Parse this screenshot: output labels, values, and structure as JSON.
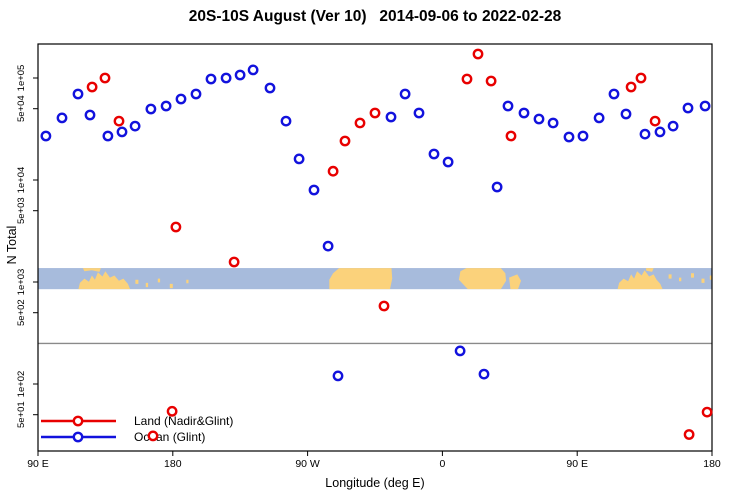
{
  "figure": {
    "title": "20S-10S August (Ver 10)   2014-09-06 to 2022-02-28",
    "xlabel": "Longitude (deg E)",
    "ylabel": "N Total"
  },
  "legend": {
    "items": [
      {
        "label": "Land (Nadir&Glint)",
        "color": "#e80000"
      },
      {
        "label": "Ocean (Glint)",
        "color": "#1212dd"
      }
    ]
  },
  "chart_data": {
    "type": "scatter",
    "title": "20S-10S August (Ver 10)   2014-09-06 to 2022-02-28",
    "xlabel": "Longitude (deg E)",
    "ylabel": "N Total",
    "x_axis": {
      "units": "degrees east (wrapping past 360)",
      "range": [
        90,
        540
      ],
      "ticks": [
        {
          "pos": 90,
          "label": "90 E"
        },
        {
          "pos": 180,
          "label": "180"
        },
        {
          "pos": 270,
          "label": "90 W"
        },
        {
          "pos": 360,
          "label": "0"
        },
        {
          "pos": 450,
          "label": "90 E"
        },
        {
          "pos": 540,
          "label": "180"
        }
      ]
    },
    "y_axis": {
      "scale": "log",
      "range": [
        22,
        215000
      ],
      "ticks": [
        {
          "value": 50,
          "label": "5e+01"
        },
        {
          "value": 100,
          "label": "1e+02"
        },
        {
          "value": 500,
          "label": "5e+02"
        },
        {
          "value": 1000,
          "label": "1e+03"
        },
        {
          "value": 5000,
          "label": "5e+03"
        },
        {
          "value": 10000,
          "label": "1e+04"
        },
        {
          "value": 50000,
          "label": "5e+04"
        },
        {
          "value": 100000,
          "label": "1e+05"
        }
      ]
    },
    "reference_line": {
      "value": 250,
      "color": "#8a8a8a"
    },
    "map_band": {
      "description": "land/ocean strip map of the 20S-10S latitude band",
      "value_top": 1370,
      "value_bottom": 850,
      "ocean_color": "#a7bbdc",
      "land_color": "#fbd27b",
      "land": [
        {
          "name": "australia-west",
          "points": [
            [
              117,
              1
            ],
            [
              118,
              0.7
            ],
            [
              121,
              0.5
            ],
            [
              124,
              0.65
            ],
            [
              126,
              0.35
            ],
            [
              128,
              0.55
            ],
            [
              130,
              0.2
            ],
            [
              133,
              0.4
            ],
            [
              135,
              0.15
            ],
            [
              138,
              0.45
            ],
            [
              141,
              0.35
            ],
            [
              144,
              0.6
            ],
            [
              147,
              0.5
            ],
            [
              150,
              0.75
            ],
            [
              151.5,
              1
            ]
          ]
        },
        {
          "name": "new-guinea-west",
          "points": [
            [
              120,
              0
            ],
            [
              132,
              0
            ],
            [
              131,
              0.18
            ],
            [
              126,
              0.1
            ],
            [
              121,
              0.15
            ]
          ]
        },
        {
          "name": "island-speck",
          "points": [
            [
              155,
              0.55
            ],
            [
              157,
              0.55
            ],
            [
              157,
              0.75
            ],
            [
              155,
              0.75
            ]
          ]
        },
        {
          "name": "island-speck",
          "points": [
            [
              162,
              0.7
            ],
            [
              163.5,
              0.7
            ],
            [
              163.5,
              0.9
            ],
            [
              162,
              0.9
            ]
          ]
        },
        {
          "name": "island-speck",
          "points": [
            [
              170,
              0.5
            ],
            [
              171.5,
              0.5
            ],
            [
              171.5,
              0.68
            ],
            [
              170,
              0.68
            ]
          ]
        },
        {
          "name": "island-speck",
          "points": [
            [
              178,
              0.75
            ],
            [
              180,
              0.75
            ],
            [
              180,
              0.95
            ],
            [
              178,
              0.95
            ]
          ]
        },
        {
          "name": "island-speck",
          "points": [
            [
              189,
              0.55
            ],
            [
              190.5,
              0.55
            ],
            [
              190.5,
              0.72
            ],
            [
              189,
              0.72
            ]
          ]
        },
        {
          "name": "south-america",
          "points": [
            [
              291,
              0
            ],
            [
              326,
              0
            ],
            [
              326.5,
              0.5
            ],
            [
              325,
              1
            ],
            [
              284.5,
              1
            ],
            [
              284.5,
              0.55
            ],
            [
              287,
              0.25
            ]
          ]
        },
        {
          "name": "africa",
          "points": [
            [
              372,
              0.15
            ],
            [
              376,
              0
            ],
            [
              399,
              0
            ],
            [
              402,
              0.25
            ],
            [
              402.5,
              0.6
            ],
            [
              399,
              1
            ],
            [
              377,
              1
            ],
            [
              371,
              0.55
            ]
          ]
        },
        {
          "name": "madagascar",
          "points": [
            [
              404.5,
              0.45
            ],
            [
              410,
              0.3
            ],
            [
              412.5,
              0.6
            ],
            [
              410.5,
              1
            ],
            [
              405.5,
              1
            ]
          ]
        },
        {
          "name": "australia-east",
          "points": [
            [
              477,
              1
            ],
            [
              478,
              0.7
            ],
            [
              481,
              0.5
            ],
            [
              484,
              0.62
            ],
            [
              486,
              0.3
            ],
            [
              488,
              0.5
            ],
            [
              490,
              0.15
            ],
            [
              493,
              0.35
            ],
            [
              495,
              0.1
            ],
            [
              498,
              0.4
            ],
            [
              501,
              0.3
            ],
            [
              503,
              0.55
            ],
            [
              505.5,
              0.75
            ],
            [
              507,
              1
            ]
          ]
        },
        {
          "name": "new-guinea-east",
          "points": [
            [
              496,
              0
            ],
            [
              501,
              0
            ],
            [
              500,
              0.18
            ],
            [
              496,
              0.12
            ]
          ]
        },
        {
          "name": "island-speck",
          "points": [
            [
              511,
              0.3
            ],
            [
              513,
              0.3
            ],
            [
              513,
              0.5
            ],
            [
              511,
              0.5
            ]
          ]
        },
        {
          "name": "island-speck",
          "points": [
            [
              518,
              0.45
            ],
            [
              519.5,
              0.45
            ],
            [
              519.5,
              0.62
            ],
            [
              518,
              0.62
            ]
          ]
        },
        {
          "name": "island-speck",
          "points": [
            [
              526,
              0.25
            ],
            [
              528,
              0.25
            ],
            [
              528,
              0.45
            ],
            [
              526,
              0.45
            ]
          ]
        },
        {
          "name": "island-speck",
          "points": [
            [
              533,
              0.5
            ],
            [
              535,
              0.5
            ],
            [
              535,
              0.7
            ],
            [
              533,
              0.7
            ]
          ]
        },
        {
          "name": "island-speck",
          "points": [
            [
              538.5,
              0.35
            ],
            [
              540,
              0.35
            ],
            [
              540,
              0.55
            ],
            [
              538.5,
              0.55
            ]
          ]
        }
      ]
    },
    "series": [
      {
        "name": "Land (Nadir&Glint)",
        "color": "#e80000",
        "marker": "open-circle",
        "points": [
          [
            126.1,
            81700
          ],
          [
            134.7,
            100000
          ],
          [
            144.1,
            37800
          ],
          [
            166.8,
            31
          ],
          [
            179.5,
            54
          ],
          [
            182.1,
            3460
          ],
          [
            220.9,
            1570
          ],
          [
            287.0,
            12200
          ],
          [
            295.0,
            24100
          ],
          [
            305.0,
            36200
          ],
          [
            315.0,
            45400
          ],
          [
            321.0,
            582
          ],
          [
            376.4,
            97700
          ],
          [
            383.8,
            172000
          ],
          [
            392.5,
            93500
          ],
          [
            405.8,
            27000
          ],
          [
            486.0,
            81700
          ],
          [
            492.6,
            100000
          ],
          [
            502.0,
            37800
          ],
          [
            524.7,
            32
          ],
          [
            536.7,
            53
          ]
        ]
      },
      {
        "name": "Ocean (Glint)",
        "color": "#1212dd",
        "marker": "open-circle",
        "points": [
          [
            95.3,
            27000
          ],
          [
            106.0,
            40600
          ],
          [
            116.7,
            69700
          ],
          [
            124.7,
            43400
          ],
          [
            136.7,
            27000
          ],
          [
            146.1,
            29600
          ],
          [
            154.8,
            33800
          ],
          [
            165.4,
            49700
          ],
          [
            175.5,
            53100
          ],
          [
            185.5,
            62200
          ],
          [
            195.5,
            69700
          ],
          [
            205.5,
            97700
          ],
          [
            215.6,
            100000
          ],
          [
            224.9,
            107000
          ],
          [
            233.6,
            120000
          ],
          [
            244.9,
            79800
          ],
          [
            255.6,
            37800
          ],
          [
            264.3,
            16100
          ],
          [
            274.3,
            7980
          ],
          [
            283.7,
            2250
          ],
          [
            290.3,
            120
          ],
          [
            325.7,
            41500
          ],
          [
            335.1,
            69700
          ],
          [
            344.4,
            45400
          ],
          [
            354.4,
            18000
          ],
          [
            363.8,
            15000
          ],
          [
            371.8,
            211
          ],
          [
            387.8,
            125
          ],
          [
            396.5,
            8530
          ],
          [
            403.8,
            53100
          ],
          [
            414.5,
            45400
          ],
          [
            424.5,
            39600
          ],
          [
            433.9,
            36200
          ],
          [
            444.5,
            26400
          ],
          [
            453.9,
            27000
          ],
          [
            464.6,
            40600
          ],
          [
            474.6,
            69700
          ],
          [
            482.6,
            44400
          ],
          [
            495.3,
            28200
          ],
          [
            505.3,
            29600
          ],
          [
            514.0,
            33800
          ],
          [
            524.0,
            50800
          ],
          [
            535.4,
            53100
          ]
        ]
      }
    ]
  }
}
